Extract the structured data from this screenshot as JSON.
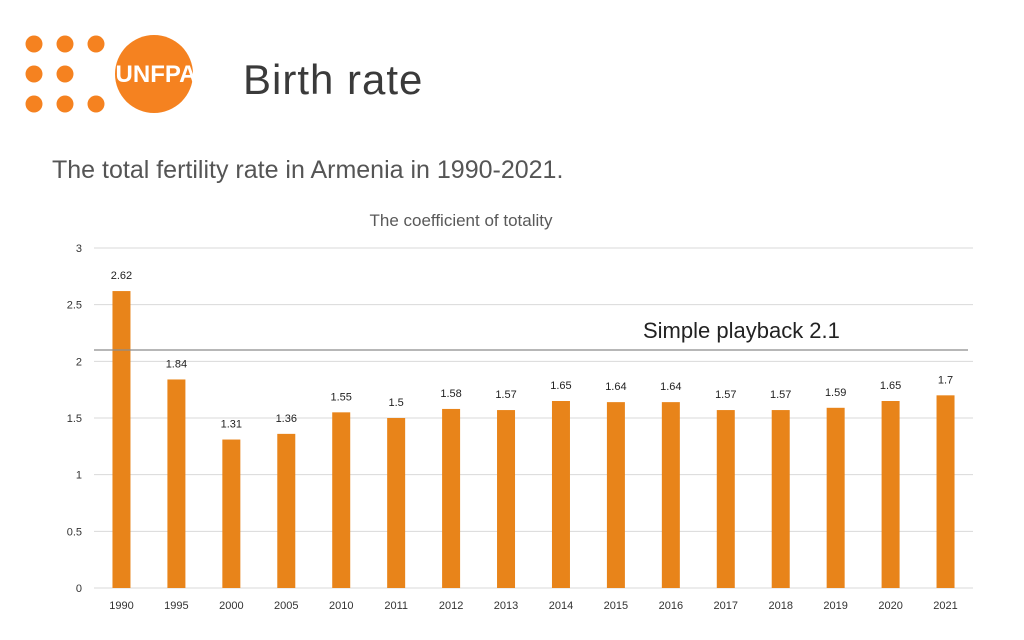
{
  "header": {
    "logo_text": "UNFPA",
    "title": "Birth rate"
  },
  "subtitle": "The total fertility rate in Armenia in 1990-2021.",
  "colors": {
    "brand_orange": "#F58220",
    "bar": "#E8841A",
    "grid": "#D9D9D9",
    "reference_line": "#8C8C8C"
  },
  "chart_data": {
    "type": "bar",
    "title": "The coefficient of totality",
    "categories": [
      "1990",
      "1995",
      "2000",
      "2005",
      "2010",
      "2011",
      "2012",
      "2013",
      "2014",
      "2015",
      "2016",
      "2017",
      "2018",
      "2019",
      "2020",
      "2021"
    ],
    "values": [
      2.62,
      1.84,
      1.31,
      1.36,
      1.55,
      1.5,
      1.58,
      1.57,
      1.65,
      1.64,
      1.64,
      1.57,
      1.57,
      1.59,
      1.65,
      1.7
    ],
    "data_labels": [
      "2.62",
      "1.84",
      "1.31",
      "1.36",
      "1.55",
      "1.5",
      "1.58",
      "1.57",
      "1.65",
      "1.64",
      "1.64",
      "1.57",
      "1.57",
      "1.59",
      "1.65",
      "1.7"
    ],
    "ylim": [
      0,
      3
    ],
    "yticks": [
      0,
      0.5,
      1,
      1.5,
      2,
      2.5,
      3
    ],
    "ytick_labels": [
      "0",
      "0.5",
      "1",
      "1.5",
      "2",
      "2.5",
      "3"
    ],
    "grid": true,
    "legend": "none",
    "reference_line": {
      "value": 2.1,
      "label": "Simple playback 2.1"
    }
  }
}
